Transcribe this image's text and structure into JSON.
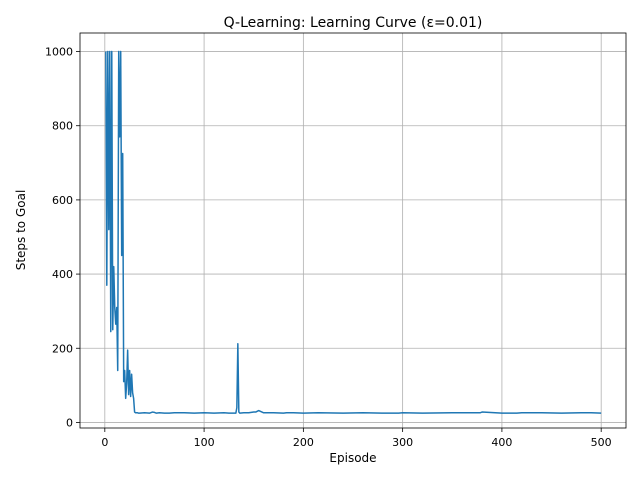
{
  "chart_data": {
    "type": "line",
    "title": "Q-Learning: Learning Curve (ε=0.01)",
    "xlabel": "Episode",
    "ylabel": "Steps to Goal",
    "xlim": [
      -25,
      525
    ],
    "ylim": [
      -15,
      1050
    ],
    "xticks": [
      0,
      100,
      200,
      300,
      400,
      500
    ],
    "yticks": [
      0,
      200,
      400,
      600,
      800,
      1000
    ],
    "grid": true,
    "legend": "none",
    "line_color": "#1f77b4",
    "series": [
      {
        "x": [
          1,
          2,
          3,
          4,
          5,
          6,
          7,
          8,
          9,
          10,
          11,
          12,
          13,
          14,
          15,
          16,
          17,
          18,
          19,
          20,
          21,
          22,
          23,
          24,
          25,
          26,
          27,
          28,
          29,
          30,
          31,
          32,
          33,
          34,
          35,
          40,
          45,
          48,
          50,
          52,
          55,
          60,
          65,
          70,
          80,
          90,
          100,
          110,
          120,
          125,
          130,
          132,
          133,
          134,
          135,
          136,
          140,
          145,
          150,
          152,
          155,
          160,
          170,
          180,
          183,
          190,
          200,
          215,
          240,
          260,
          280,
          296,
          300,
          320,
          350,
          378,
          380,
          400,
          415,
          420,
          440,
          460,
          480,
          490,
          500
        ],
        "y": [
          1000,
          370,
          1000,
          520,
          1000,
          245,
          1000,
          250,
          420,
          310,
          265,
          310,
          140,
          1000,
          770,
          1000,
          450,
          725,
          110,
          140,
          65,
          105,
          195,
          75,
          140,
          70,
          130,
          80,
          65,
          28,
          26,
          26,
          26,
          25,
          25,
          26,
          25,
          28,
          27,
          25,
          26,
          25,
          25,
          26,
          26,
          25,
          26,
          25,
          26,
          25,
          25,
          25,
          40,
          212,
          28,
          25,
          26,
          26,
          28,
          28,
          32,
          26,
          26,
          25,
          26,
          26,
          25,
          26,
          25,
          26,
          25,
          25,
          26,
          25,
          26,
          26,
          28,
          25,
          25,
          26,
          26,
          25,
          26,
          26,
          25
        ]
      }
    ]
  }
}
